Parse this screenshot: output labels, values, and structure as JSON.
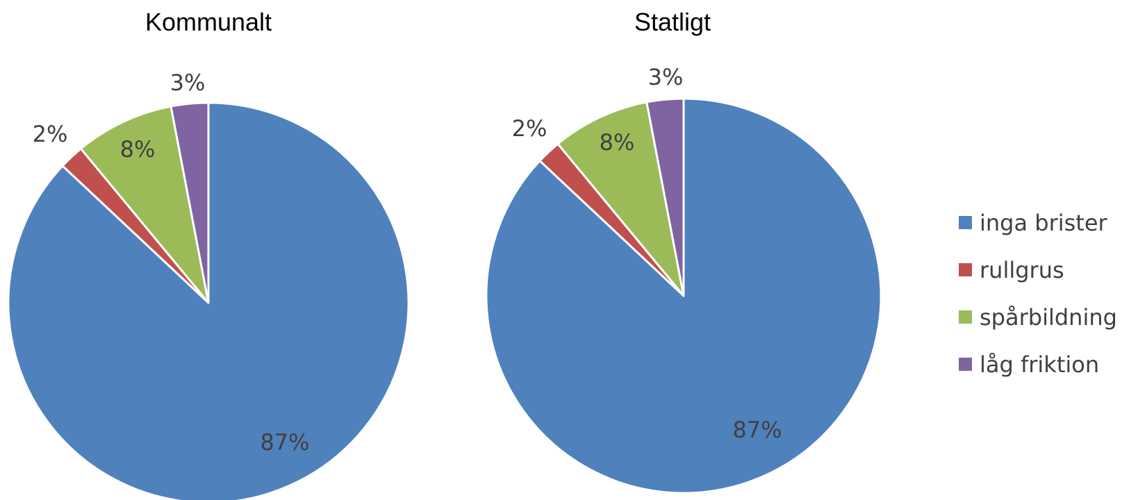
{
  "chart_data": [
    {
      "type": "pie",
      "title": "Kommunalt",
      "slices": [
        {
          "label": "inga brister",
          "value": 87,
          "value_label": "87%",
          "color": "#4F81BD"
        },
        {
          "label": "rullgrus",
          "value": 2,
          "value_label": "2%",
          "color": "#C0504D"
        },
        {
          "label": "spårbildning",
          "value": 8,
          "value_label": "8%",
          "color": "#9BBB59"
        },
        {
          "label": "låg friktion",
          "value": 3,
          "value_label": "3%",
          "color": "#8064A2"
        }
      ]
    },
    {
      "type": "pie",
      "title": "Statligt",
      "slices": [
        {
          "label": "inga brister",
          "value": 87,
          "value_label": "87%",
          "color": "#4F81BD"
        },
        {
          "label": "rullgrus",
          "value": 2,
          "value_label": "2%",
          "color": "#C0504D"
        },
        {
          "label": "spårbildning",
          "value": 8,
          "value_label": "8%",
          "color": "#9BBB59"
        },
        {
          "label": "låg friktion",
          "value": 3,
          "value_label": "3%",
          "color": "#8064A2"
        }
      ]
    }
  ],
  "legend": {
    "placement": "right",
    "items": [
      {
        "label": "inga brister",
        "color": "#4F81BD"
      },
      {
        "label": "rullgrus",
        "color": "#C0504D"
      },
      {
        "label": "spårbildning",
        "color": "#9BBB59"
      },
      {
        "label": "låg friktion",
        "color": "#8064A2"
      }
    ]
  }
}
